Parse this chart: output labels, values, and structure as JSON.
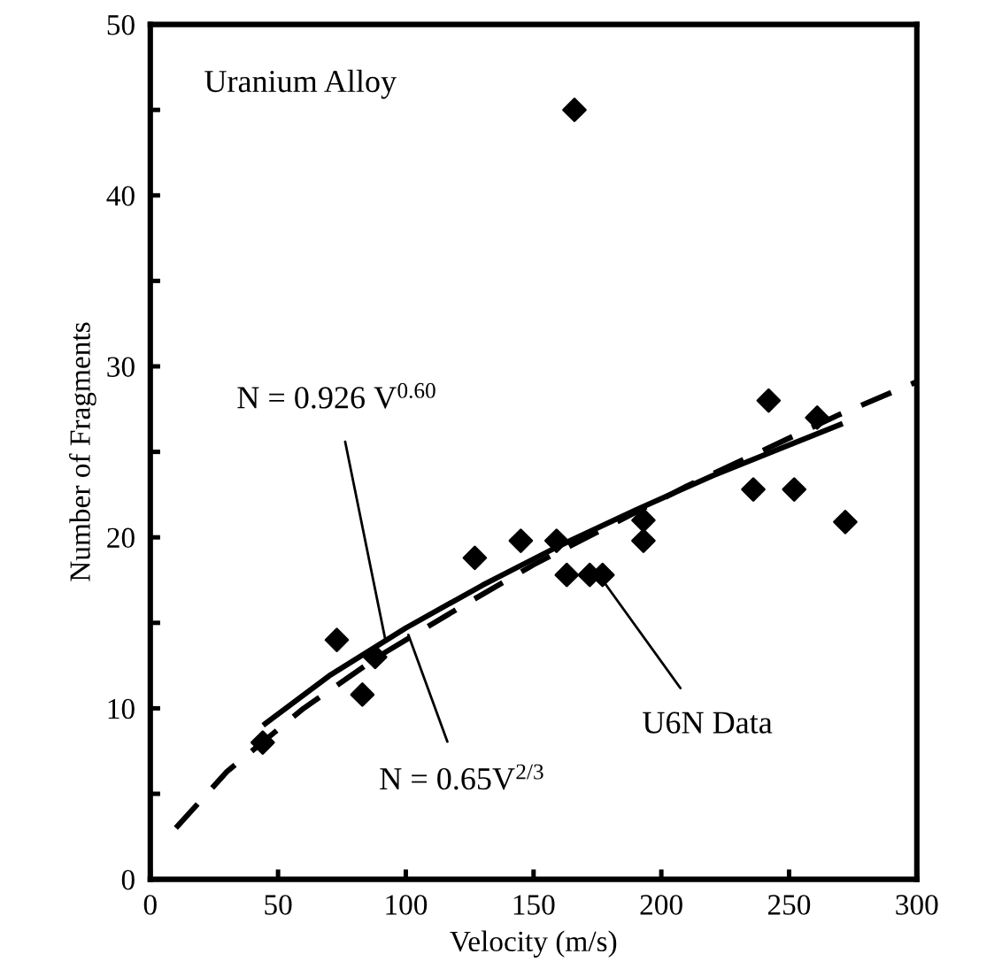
{
  "chart_data": {
    "type": "scatter",
    "xlabel": "Velocity (m/s)",
    "ylabel": "Number of Fragments",
    "xlim": [
      0,
      300
    ],
    "xticks": [
      0,
      50,
      100,
      150,
      200,
      250,
      300
    ],
    "ylim": [
      0,
      50
    ],
    "yticks": [
      0,
      {
        "value": 5,
        "label": null
      },
      10,
      {
        "value": 15,
        "label": null
      },
      20,
      {
        "value": 25,
        "label": null
      },
      30,
      {
        "value": 35,
        "label": null
      },
      40,
      {
        "value": 45,
        "label": null
      },
      50
    ],
    "grid": false,
    "series": [
      {
        "color": "#000000",
        "marker": "diamond",
        "x": [
          44,
          73,
          83,
          88,
          127,
          145,
          159,
          163,
          172,
          177,
          193,
          193,
          236,
          252,
          272,
          166,
          242,
          261
        ],
        "values": [
          8,
          14,
          10.8,
          13,
          18.8,
          19.8,
          19.8,
          17.8,
          17.8,
          17.8,
          19.8,
          21,
          22.8,
          22.8,
          20.9,
          45,
          28,
          27
        ]
      },
      {
        "type": "line",
        "color": "#000000",
        "line_style": "solid",
        "marker": "none",
        "x": [
          45,
          70,
          100,
          130,
          160,
          190,
          220,
          250,
          270
        ],
        "values": [
          9.1,
          11.9,
          14.7,
          17.2,
          19.5,
          21.6,
          23.6,
          25.4,
          26.6
        ]
      },
      {
        "type": "line",
        "color": "#000000",
        "line_style": "dashed",
        "marker": "none",
        "x": [
          10,
          30,
          60,
          90,
          120,
          150,
          180,
          210,
          240,
          270,
          300
        ],
        "values": [
          3.0,
          6.3,
          10.0,
          13.1,
          15.8,
          18.4,
          20.7,
          23.0,
          25.1,
          27.2,
          29.1
        ]
      }
    ],
    "annotations": [
      "Uranium Alloy",
      {
        "text": "N = 0.926 V$^{0.60}$",
        "x": 92,
        "y": 14
      },
      {
        "text": "N = 0.65V$^{2/3}$",
        "x": 101,
        "y": 14.3
      },
      {
        "text": "U6N Data",
        "x": 177,
        "y": 17.5
      }
    ]
  }
}
